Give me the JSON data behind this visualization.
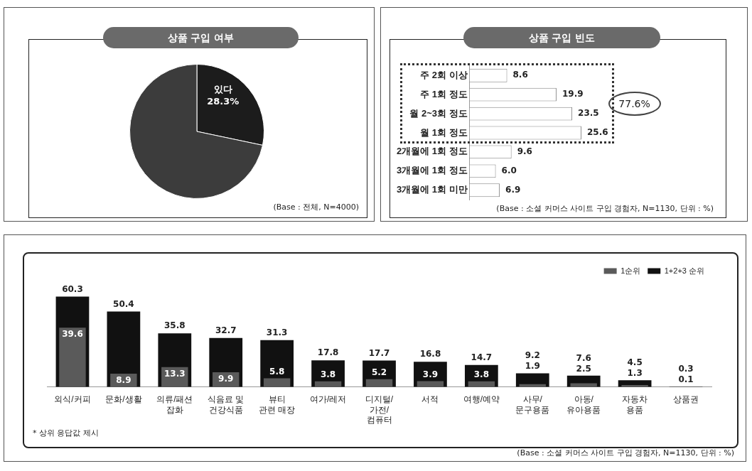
{
  "chart_data": [
    {
      "type": "pie",
      "title": "상품 구입 여부",
      "categories": [
        "있다",
        null
      ],
      "values": [
        28.3,
        71.7
      ],
      "colors": [
        "#1c1c1c",
        "#3c3c3c"
      ],
      "value_labels": [
        "28.3%",
        null
      ],
      "legend": false,
      "annotations": [
        "(Base : 전체, N=4000)"
      ]
    },
    {
      "type": "bar",
      "orientation": "horizontal",
      "title": "상품 구입 빈도",
      "categories": [
        "주 2회 이상",
        "주 1회 정도",
        "월 2~3회 정도",
        "월 1회 정도",
        "2개월에 1회 정도",
        "3개월에 1회 정도",
        "3개월에 1회 미만"
      ],
      "values": [
        8.6,
        19.9,
        23.5,
        25.6,
        9.6,
        6.0,
        6.9
      ],
      "color": "#ffffff",
      "value_labels": [
        "8.6",
        "19.9",
        "23.5",
        "25.6",
        "9.6",
        "6.0",
        "6.9"
      ],
      "tick_labels": "y",
      "legend": false,
      "annotations": [
        "77.6%",
        "(Base : 소셜 커머스 사이트 구입 경험자, N=1130, 단위 : %)"
      ]
    },
    {
      "type": "bar",
      "categories": [
        "외식/커피",
        "문화/생활",
        "의류/패션\n잡화",
        "식음료 및\n건강식품",
        "뷰티\n관련 매장",
        "여가/레저",
        "디지털/\n가전/\n컴퓨터",
        "서적",
        "여행/예약",
        "사무/\n문구용품",
        "아동/\n유아용품",
        "자동차\n용품",
        "상품권"
      ],
      "series": [
        {
          "name": "1순위",
          "color": "#5a5a5a",
          "values": [
            39.6,
            8.9,
            13.3,
            9.9,
            5.8,
            3.8,
            5.2,
            3.9,
            3.8,
            1.9,
            2.5,
            1.3,
            0.1
          ]
        },
        {
          "name": "1+2+3 순위",
          "color": "#111111",
          "values": [
            60.3,
            50.4,
            35.8,
            32.7,
            31.3,
            17.8,
            17.7,
            16.8,
            14.7,
            9.2,
            7.6,
            4.5,
            0.3
          ]
        }
      ],
      "data_labels": true,
      "tick_labels": "x",
      "legend": "top right",
      "annotations": [
        "* 상위 응답값 제시",
        "(Base : 소셜 커머스 사이트 구입 경험자, N=1130, 단위 : %)"
      ]
    }
  ]
}
